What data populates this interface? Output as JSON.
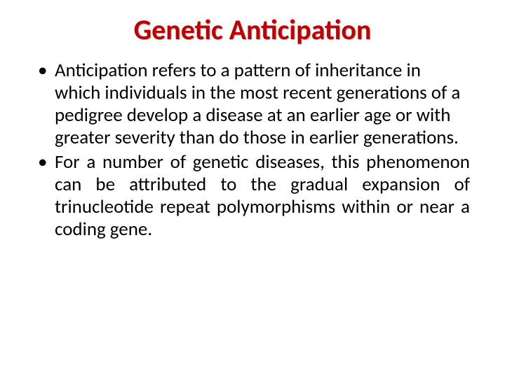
{
  "slide": {
    "title": "Genetic Anticipation",
    "title_color": "#c00000",
    "title_fontsize": 40,
    "body_fontsize": 27,
    "body_color": "#000000",
    "background_color": "#ffffff",
    "bullets": [
      {
        "text": "Anticipation refers to a pattern of inheritance in which individuals in the most recent generations of a pedigree develop a disease at an earlier age or with greater severity than do those in earlier generations.",
        "align": "left"
      },
      {
        "text": "For a number of genetic diseases, this phenomenon can be attributed to the gradual expansion of trinucleotide repeat polymorphisms within or near a coding gene.",
        "align": "justify"
      }
    ]
  }
}
